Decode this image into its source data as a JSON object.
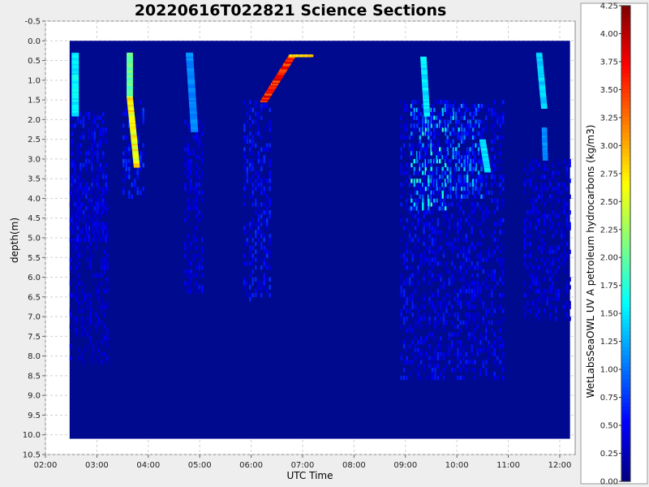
{
  "chart_data": {
    "type": "heatmap",
    "title": "20220616T022821 Science Sections",
    "xlabel": "UTC Time",
    "ylabel": "depth(m)",
    "colorbar_label": "WetLabsSeaOWL UV A petroleum hydrocarbons (kg/m3)",
    "xlim": [
      2.0,
      12.3
    ],
    "ylim": [
      10.5,
      -0.5
    ],
    "x_ticks": [
      "02:00",
      "03:00",
      "04:00",
      "05:00",
      "06:00",
      "07:00",
      "08:00",
      "09:00",
      "10:00",
      "11:00",
      "12:00"
    ],
    "y_ticks": [
      "-0.5",
      "0.0",
      "0.5",
      "1.0",
      "1.5",
      "2.0",
      "2.5",
      "3.0",
      "3.5",
      "4.0",
      "4.5",
      "5.0",
      "5.5",
      "6.0",
      "6.5",
      "7.0",
      "7.5",
      "8.0",
      "8.5",
      "9.0",
      "9.5",
      "10.0",
      "10.5"
    ],
    "colorbar_ticks": [
      "0.00",
      "0.25",
      "0.50",
      "0.75",
      "1.00",
      "1.25",
      "1.50",
      "1.75",
      "2.00",
      "2.25",
      "2.50",
      "2.75",
      "3.00",
      "3.25",
      "3.50",
      "3.75",
      "4.00",
      "4.25"
    ],
    "colorbar_range": [
      0.0,
      4.25
    ],
    "colormap": "jet",
    "background_color": "#000a8f",
    "grid": true,
    "data_extent": {
      "x": [
        2.47,
        12.2
      ],
      "y": [
        0.0,
        10.1
      ]
    },
    "tracks": [
      {
        "x": [
          2.58,
          2.58
        ],
        "y": [
          0.3,
          1.9
        ],
        "value": 1.55,
        "w": 0.14
      },
      {
        "x": [
          3.64,
          3.64
        ],
        "y": [
          0.3,
          1.4
        ],
        "value": 2.0,
        "w": 0.12
      },
      {
        "x": [
          3.64,
          3.78
        ],
        "y": [
          1.4,
          3.2
        ],
        "value": 2.65,
        "w": 0.12
      },
      {
        "x": [
          4.8,
          4.9
        ],
        "y": [
          0.3,
          2.3
        ],
        "value": 1.1,
        "w": 0.14
      },
      {
        "x": [
          6.25,
          6.8
        ],
        "y": [
          1.5,
          0.35
        ],
        "value": 3.6,
        "w": 0.14
      },
      {
        "x": [
          6.8,
          7.15
        ],
        "y": [
          0.35,
          0.35
        ],
        "value": 2.8,
        "w": 0.14
      },
      {
        "x": [
          9.35,
          9.42
        ],
        "y": [
          0.4,
          1.9
        ],
        "value": 1.5,
        "w": 0.12
      },
      {
        "x": [
          10.5,
          10.6
        ],
        "y": [
          2.5,
          3.3
        ],
        "value": 1.45,
        "w": 0.12
      },
      {
        "x": [
          11.6,
          11.7
        ],
        "y": [
          0.3,
          1.7
        ],
        "value": 1.4,
        "w": 0.12
      },
      {
        "x": [
          11.7,
          11.72
        ],
        "y": [
          2.2,
          3.0
        ],
        "value": 1.1,
        "w": 0.1
      }
    ],
    "patches": [
      {
        "x": [
          2.5,
          3.2
        ],
        "y": [
          1.8,
          5.0
        ],
        "value": 0.45
      },
      {
        "x": [
          3.5,
          3.9
        ],
        "y": [
          1.5,
          4.0
        ],
        "value": 0.55
      },
      {
        "x": [
          4.7,
          5.05
        ],
        "y": [
          2.0,
          6.3
        ],
        "value": 0.4
      },
      {
        "x": [
          5.85,
          6.35
        ],
        "y": [
          1.5,
          6.5
        ],
        "value": 0.5
      },
      {
        "x": [
          9.1,
          9.8
        ],
        "y": [
          1.6,
          4.3
        ],
        "value": 1.25
      },
      {
        "x": [
          9.8,
          10.5
        ],
        "y": [
          1.6,
          4.0
        ],
        "value": 1.0
      },
      {
        "x": [
          8.9,
          10.9
        ],
        "y": [
          1.5,
          8.5
        ],
        "value": 0.45
      },
      {
        "x": [
          11.3,
          12.2
        ],
        "y": [
          3.0,
          7.0
        ],
        "value": 0.4
      },
      {
        "x": [
          2.47,
          3.2
        ],
        "y": [
          3.5,
          8.1
        ],
        "value": 0.35
      }
    ]
  }
}
